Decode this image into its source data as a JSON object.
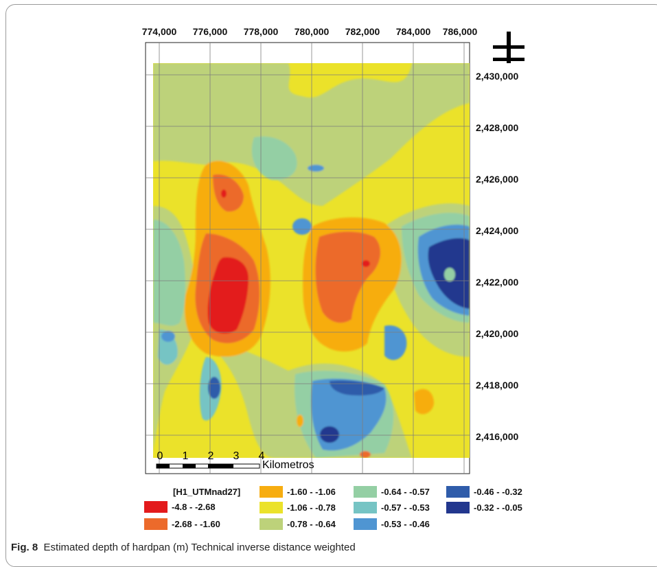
{
  "figure": {
    "label": "Fig. 8",
    "caption": "Estimated depth of hardpan (m) Technical inverse distance weighted"
  },
  "map": {
    "x_ticks": [
      "774,000",
      "776,000",
      "778,000",
      "780,000",
      "782,000",
      "784,000",
      "786,000"
    ],
    "y_ticks": [
      "2,430,000",
      "2,428,000",
      "2,426,000",
      "2,424,000",
      "2,422,000",
      "2,420,000",
      "2,418,000",
      "2,416,000"
    ],
    "north_arrow_icon": "north-arrow-cross-icon",
    "scale_bar": {
      "ticks": [
        "0",
        "1",
        "2",
        "3",
        "4"
      ],
      "unit": "Kilometros"
    }
  },
  "legend": {
    "title": "[H1_UTMnad27]",
    "classes": [
      {
        "label": "-4.8 - -2.68",
        "color": "#e31a1c"
      },
      {
        "label": "-2.68 - -1.60",
        "color": "#ec6a2b"
      },
      {
        "label": "-1.60 - -1.06",
        "color": "#f7ad10"
      },
      {
        "label": "-1.06 - -0.78",
        "color": "#ebe22a"
      },
      {
        "label": "-0.78 - -0.64",
        "color": "#bdd27a"
      },
      {
        "label": "-0.64 - -0.57",
        "color": "#94cfa4"
      },
      {
        "label": "-0.57 - -0.53",
        "color": "#76c4c4"
      },
      {
        "label": "-0.53 - -0.46",
        "color": "#4f95d2"
      },
      {
        "label": "-0.46 - -0.32",
        "color": "#2f5caa"
      },
      {
        "label": "-0.32 - -0.05",
        "color": "#22378e"
      }
    ]
  }
}
